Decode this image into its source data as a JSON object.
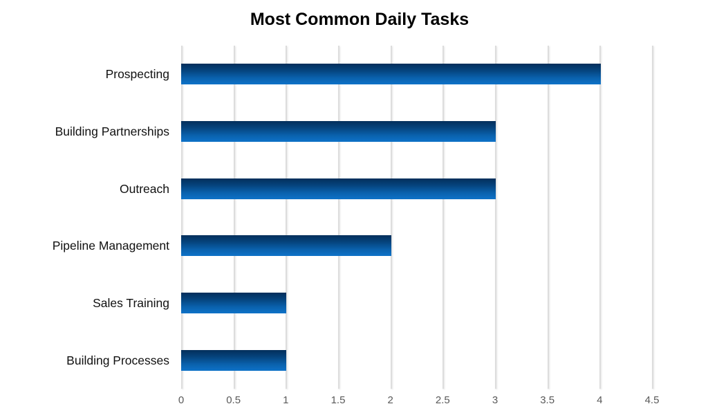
{
  "chart_data": {
    "type": "bar",
    "orientation": "horizontal",
    "title": "Most Common Daily Tasks",
    "categories": [
      "Prospecting",
      "Building Partnerships",
      "Outreach",
      "Pipeline Management",
      "Sales Training",
      "Building Processes"
    ],
    "values": [
      4,
      3,
      3,
      2,
      1,
      1
    ],
    "xlabel": "",
    "ylabel": "",
    "xlim": [
      0,
      4.5
    ],
    "x_ticks": [
      0,
      0.5,
      1,
      1.5,
      2,
      2.5,
      3,
      3.5,
      4,
      4.5
    ],
    "x_tick_labels": [
      "0",
      "0.5",
      "1",
      "1.5",
      "2",
      "2.5",
      "3",
      "3.5",
      "4",
      "4.5"
    ],
    "grid": true,
    "legend": false,
    "colors": {
      "bar_gradient_top": "#042f5b",
      "bar_gradient_mid1": "#05437c",
      "bar_gradient_mid2": "#0a62ae",
      "bar_gradient_bottom": "#0e72c8",
      "gridline": "#dddddd",
      "tick_label": "#595959",
      "category_label": "#111111",
      "title": "#000000"
    }
  }
}
